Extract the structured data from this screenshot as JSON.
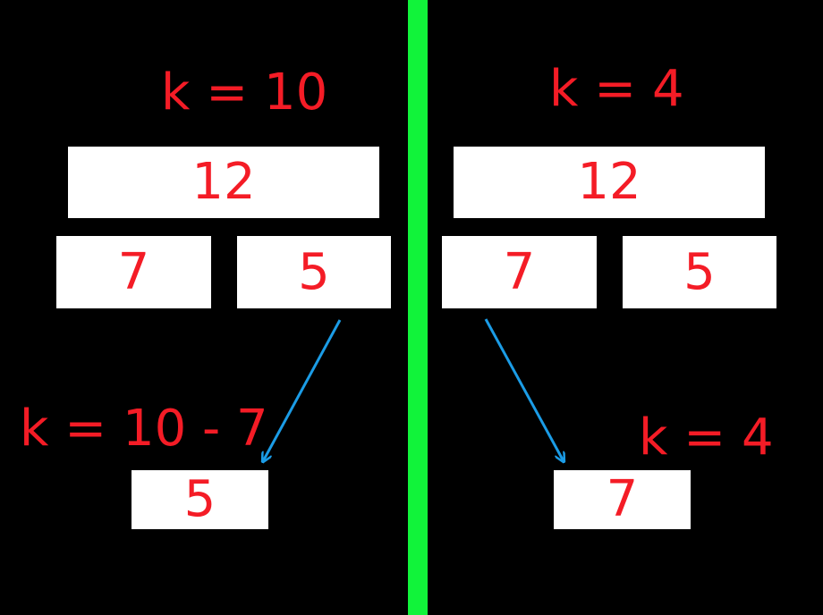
{
  "colors": {
    "background": "#000000",
    "divider": "#11f33a",
    "text": "#f41c26",
    "box": "#ffffff",
    "arrow": "#1b9ce6"
  },
  "left": {
    "k_label": "k = 10",
    "root": "12",
    "child_left": "7",
    "child_right": "5",
    "next_k_label": "k = 10 - 7",
    "result": "5"
  },
  "right": {
    "k_label": "k = 4",
    "root": "12",
    "child_left": "7",
    "child_right": "5",
    "next_k_label": "k = 4",
    "result": "7"
  }
}
